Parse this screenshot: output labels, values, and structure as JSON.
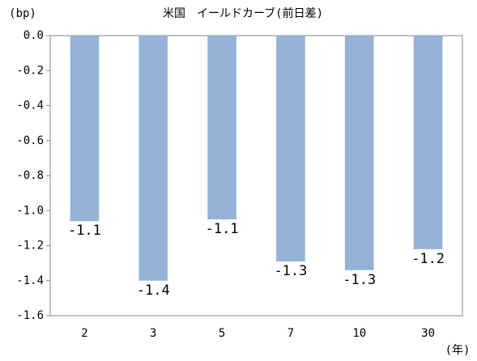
{
  "chart_data": {
    "type": "bar",
    "title": "米国　イールドカーブ(前日差)",
    "y_label": "(bp)",
    "x_label": "(年)",
    "categories": [
      "2",
      "3",
      "5",
      "7",
      "10",
      "30"
    ],
    "values": [
      -1.06,
      -1.4,
      -1.05,
      -1.29,
      -1.34,
      -1.22
    ],
    "value_labels": [
      "-1.1",
      "-1.4",
      "-1.1",
      "-1.3",
      "-1.3",
      "-1.2"
    ],
    "color": "#95b3d7",
    "ylim": [
      -1.6,
      0
    ],
    "yticks": [
      {
        "value": 0,
        "label": "0.0"
      },
      {
        "value": -0.2,
        "label": "-0.2"
      },
      {
        "value": -0.4,
        "label": "-0.4"
      },
      {
        "value": -0.6,
        "label": "-0.6"
      },
      {
        "value": -0.8,
        "label": "-0.8"
      },
      {
        "value": -1.0,
        "label": "-1.0"
      },
      {
        "value": -1.2,
        "label": "-1.2"
      },
      {
        "value": -1.4,
        "label": "-1.4"
      },
      {
        "value": -1.6,
        "label": "-1.6"
      }
    ],
    "grid": false
  }
}
